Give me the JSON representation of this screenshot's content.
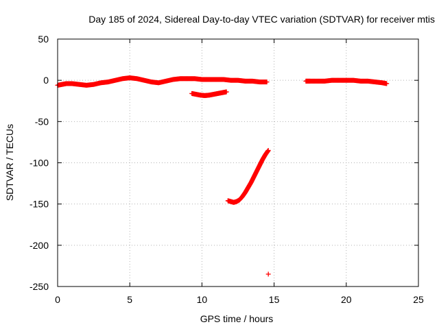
{
  "chart_data": {
    "type": "scatter",
    "title": "Day 185 of 2024, Sidereal Day-to-day VTEC variation (SDTVAR) for receiver mtis",
    "xlabel": "GPS time / hours",
    "ylabel": "SDTVAR / TECUs",
    "xlim": [
      0,
      25
    ],
    "ylim": [
      -250,
      50
    ],
    "xticks": [
      "0",
      "5",
      "10",
      "15",
      "20",
      "25"
    ],
    "yticks": [
      "50",
      "0",
      "-50",
      "-100",
      "-150",
      "-200",
      "-250"
    ],
    "grid": true,
    "marker": "+",
    "series": [
      {
        "color": "#ff0000",
        "segments": [
          {
            "x": [
              0.0,
              0.3,
              0.6,
              1.0,
              1.5,
              2.0,
              2.5,
              3.0,
              3.5,
              4.0,
              4.5,
              5.0,
              5.5,
              6.0,
              6.5,
              7.0,
              7.5,
              8.0,
              8.5,
              9.0,
              9.5,
              10.0,
              10.5,
              11.0,
              11.5,
              12.0,
              12.5,
              13.0,
              13.5,
              14.0,
              14.5
            ],
            "y": [
              -6,
              -5,
              -4,
              -4,
              -5,
              -6,
              -5,
              -3,
              -2,
              0,
              2,
              3,
              2,
              0,
              -2,
              -3,
              -1,
              1,
              2,
              2,
              2,
              1,
              1,
              1,
              1,
              0,
              0,
              -1,
              -1,
              -2,
              -2
            ]
          },
          {
            "x": [
              9.3,
              9.6,
              9.9,
              10.2,
              10.5,
              10.8,
              11.1,
              11.4,
              11.7
            ],
            "y": [
              -16,
              -17,
              -18,
              -18.5,
              -18,
              -17,
              -16,
              -15,
              -14
            ]
          },
          {
            "x": [
              11.8,
              12.0,
              12.2,
              12.4,
              12.6,
              12.8,
              13.0,
              13.2,
              13.4,
              13.6,
              13.8,
              14.0,
              14.2,
              14.4,
              14.6
            ],
            "y": [
              -146,
              -147,
              -148,
              -147,
              -145,
              -141,
              -136,
              -130,
              -124,
              -117,
              -110,
              -103,
              -96,
              -90,
              -85
            ]
          },
          {
            "x": [
              14.6
            ],
            "y": [
              -235
            ]
          },
          {
            "x": [
              17.2,
              17.5,
              18.0,
              18.5,
              19.0,
              19.5,
              20.0,
              20.5,
              21.0,
              21.5,
              22.0,
              22.5,
              22.8
            ],
            "y": [
              -1,
              -1,
              -1,
              -1,
              0,
              0,
              0,
              0,
              -1,
              -1,
              -2,
              -3,
              -4
            ]
          }
        ]
      }
    ]
  }
}
